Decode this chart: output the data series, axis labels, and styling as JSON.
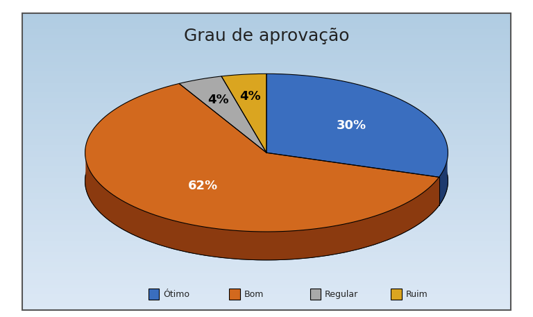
{
  "title": "Grau de aprovação",
  "labels": [
    "Ótimo",
    "Bom",
    "Regular",
    "Ruim"
  ],
  "values": [
    30,
    62,
    4,
    4
  ],
  "colors": [
    "#3A6EBF",
    "#D2691E",
    "#A9A9A9",
    "#DAA520"
  ],
  "shadow_colors": [
    "#1E3A6E",
    "#8B3A0F",
    "#696969",
    "#8B6914"
  ],
  "text_colors": [
    "white",
    "white",
    "black",
    "black"
  ],
  "title_fontsize": 18,
  "legend_labels": [
    "Ótimo",
    "Bom",
    "Regular",
    "Ruim"
  ],
  "start_angle": 90
}
